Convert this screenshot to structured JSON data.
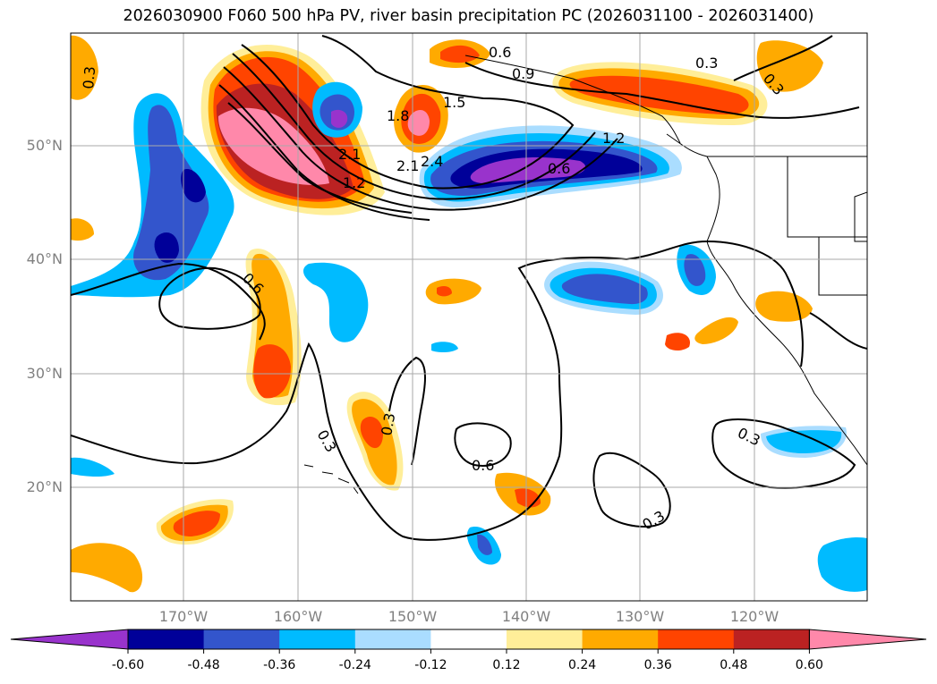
{
  "title": "2026030900 F060 500 hPa PV, river basin precipitation PC (2026031100 - 2026031400)",
  "latitude_labels": [
    "50°N",
    "40°N",
    "30°N",
    "20°N"
  ],
  "longitude_labels": [
    "170°W",
    "160°W",
    "150°W",
    "140°W",
    "130°W",
    "120°W"
  ],
  "contour_labels": [
    "0.3",
    "0.6",
    "0.9",
    "0.3",
    "0.3",
    "1.5",
    "1.8",
    "1.2",
    "2.1",
    "2.1",
    "2.4",
    "1.2",
    "0.6",
    "0.6",
    "0.3",
    "0.3",
    "0.6",
    "0.3",
    "0.3"
  ],
  "colorbar": {
    "ticks": [
      "-0.60",
      "-0.48",
      "-0.36",
      "-0.24",
      "-0.12",
      "0.12",
      "0.24",
      "0.36",
      "0.48",
      "0.60"
    ],
    "colors": [
      "#9933cc",
      "#000099",
      "#3355cc",
      "#00bbff",
      "#aaddff",
      "#ffffff",
      "#ffee99",
      "#ffaa00",
      "#ff4400",
      "#bb2222",
      "#ff88aa"
    ]
  }
}
